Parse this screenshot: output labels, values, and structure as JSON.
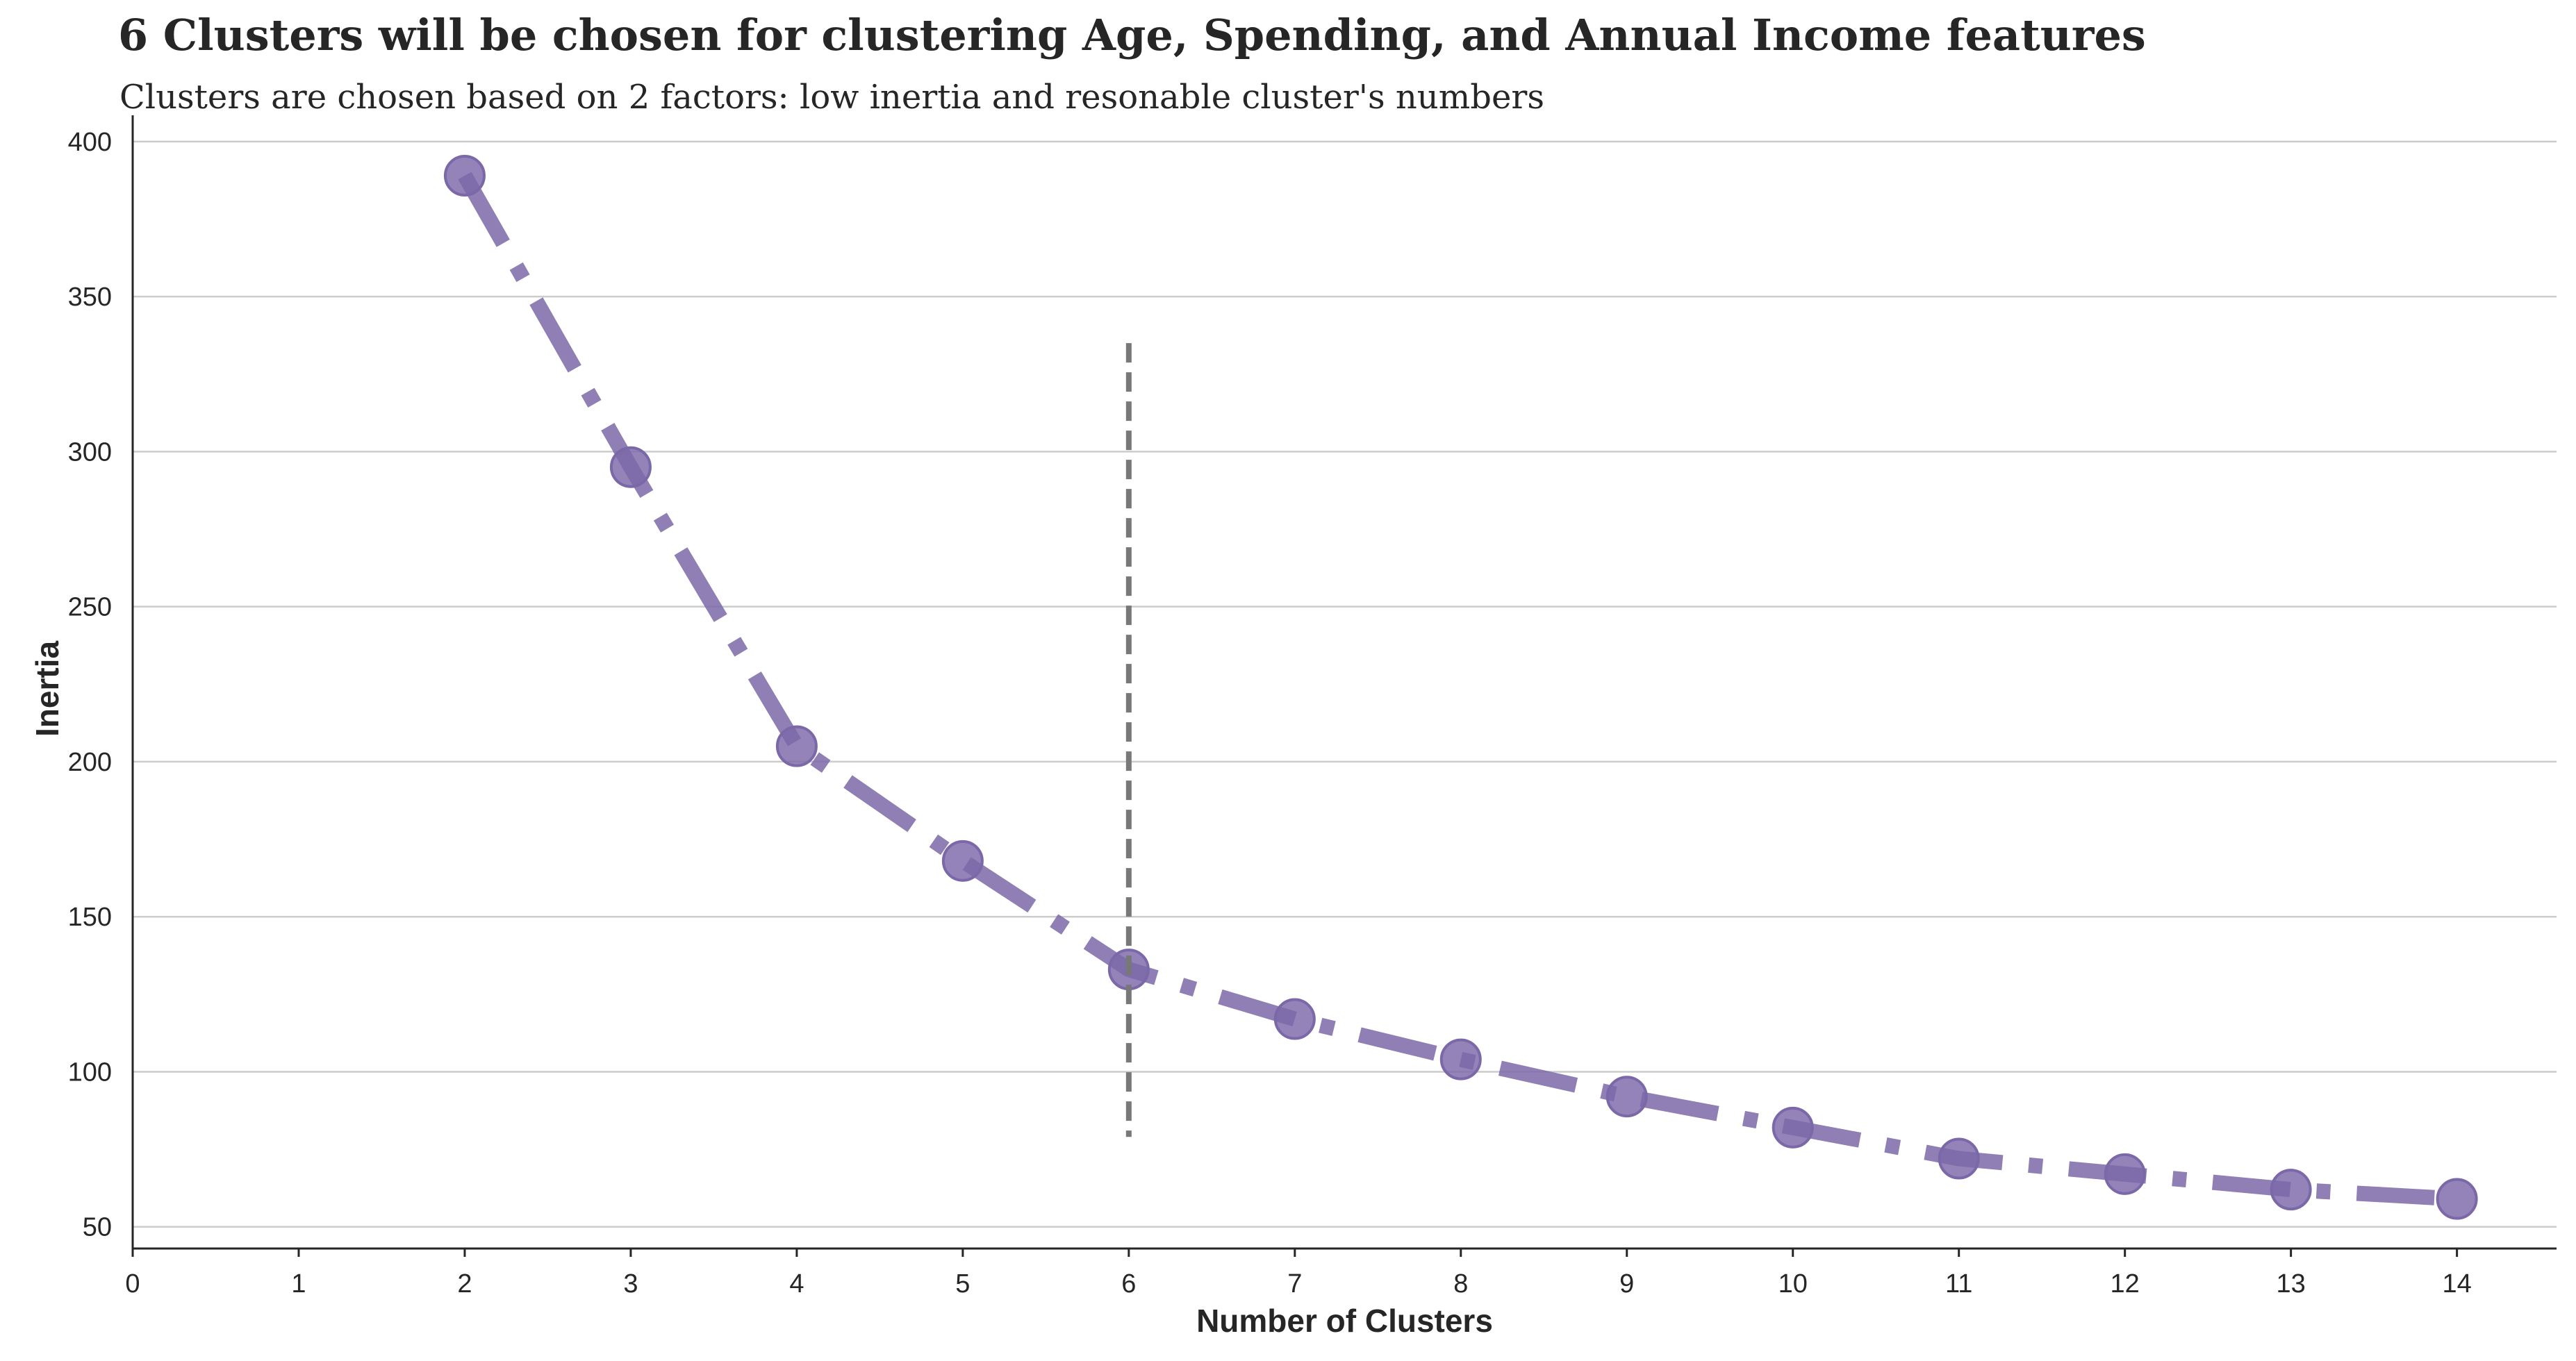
{
  "colors": {
    "series": "#7b68a8",
    "reference_line": "#787878",
    "grid": "#cccccc",
    "axis": "#262626"
  },
  "chart_data": {
    "type": "line",
    "title": "6 Clusters will be chosen for clustering Age, Spending, and Annual Income features",
    "subtitle": "Clusters are chosen based on 2 factors: low inertia and resonable cluster's numbers",
    "xlabel": "Number of Clusters",
    "ylabel": "Inertia",
    "xlim": [
      0,
      14.6
    ],
    "ylim": [
      43,
      404
    ],
    "xticks": [
      0,
      1,
      2,
      3,
      4,
      5,
      6,
      7,
      8,
      9,
      10,
      11,
      12,
      13,
      14
    ],
    "yticks": [
      50,
      100,
      150,
      200,
      250,
      300,
      350,
      400
    ],
    "grid": "horizontal",
    "x": [
      2,
      3,
      4,
      5,
      6,
      7,
      8,
      9,
      10,
      11,
      12,
      13,
      14
    ],
    "series": [
      {
        "values": [
          389,
          295,
          205,
          168,
          133,
          117,
          104,
          92,
          82,
          72,
          67,
          62,
          59
        ],
        "line_style": "dashdot",
        "marker": "circle"
      }
    ],
    "annotations": [
      {
        "type": "vertical-line",
        "x": 6,
        "y_range": [
          79,
          335
        ],
        "line_style": "dashed"
      }
    ]
  }
}
